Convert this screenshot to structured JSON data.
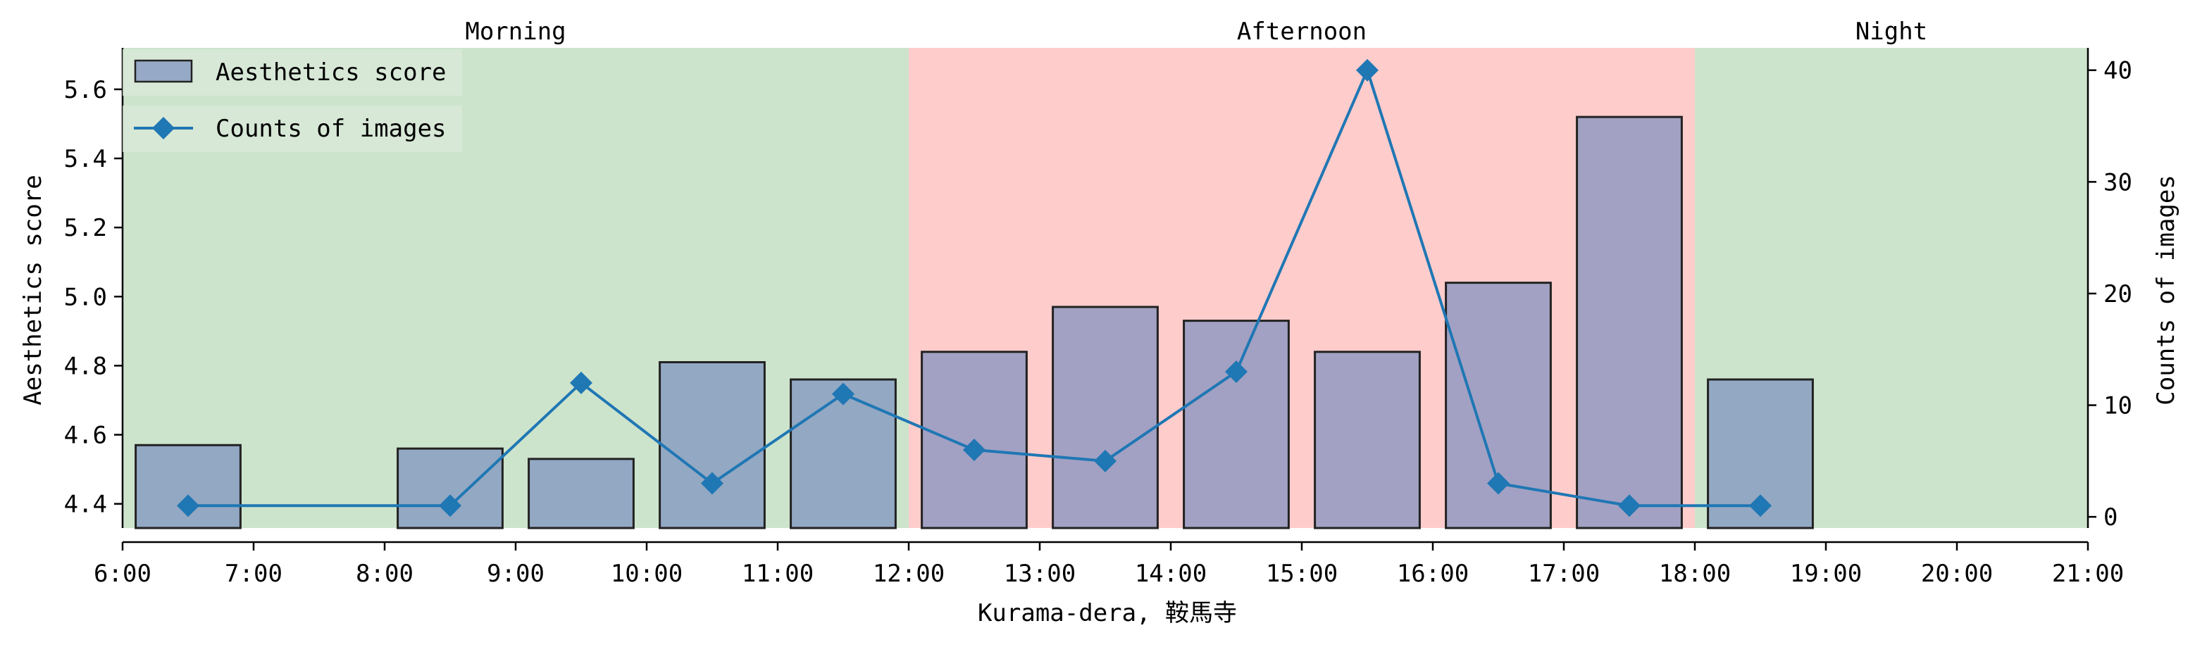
{
  "chart_data": {
    "type": "bar+line",
    "xlabel": "Kurama-dera, 鞍馬寺",
    "x_ticks": [
      "6:00",
      "7:00",
      "8:00",
      "9:00",
      "10:00",
      "11:00",
      "12:00",
      "13:00",
      "14:00",
      "15:00",
      "16:00",
      "17:00",
      "18:00",
      "19:00",
      "20:00",
      "21:00"
    ],
    "xlim": [
      6,
      21
    ],
    "periods": [
      {
        "label": "Morning",
        "start": 6,
        "end": 12,
        "color": "#cde4cc"
      },
      {
        "label": "Afternoon",
        "start": 12,
        "end": 18,
        "color": "#ffcccc"
      },
      {
        "label": "Night",
        "start": 18,
        "end": 21,
        "color": "#cde4cc"
      }
    ],
    "left_axis": {
      "label": "Aesthetics score",
      "ylim": [
        4.33,
        5.72
      ],
      "ticks": [
        4.4,
        4.6,
        4.8,
        5.0,
        5.2,
        5.4,
        5.6
      ],
      "tick_labels": [
        "4.4",
        "4.6",
        "4.8",
        "5.0",
        "5.2",
        "5.4",
        "5.6"
      ]
    },
    "right_axis": {
      "label": "Counts of images",
      "ylim": [
        -1,
        42
      ],
      "ticks": [
        0,
        10,
        20,
        30,
        40
      ],
      "tick_labels": [
        "0",
        "10",
        "20",
        "30",
        "40"
      ]
    },
    "bars": {
      "name": "Aesthetics score",
      "color": "#7b8fbf",
      "x": [
        6.5,
        8.5,
        9.5,
        10.5,
        11.5,
        12.5,
        13.5,
        14.5,
        15.5,
        16.5,
        17.5,
        18.5
      ],
      "values": [
        4.57,
        4.56,
        4.53,
        4.81,
        4.76,
        4.84,
        4.97,
        4.93,
        4.84,
        5.04,
        5.52,
        4.76
      ]
    },
    "line": {
      "name": "Counts of images",
      "color": "#1f77b4",
      "marker": "diamond",
      "x": [
        6.5,
        8.5,
        9.5,
        10.5,
        11.5,
        12.5,
        13.5,
        14.5,
        15.5,
        16.5,
        17.5,
        18.5
      ],
      "values": [
        1,
        1,
        12,
        3,
        11,
        6,
        5,
        13,
        40,
        3,
        1,
        1
      ]
    },
    "legend": {
      "placement": "top-left",
      "entries": [
        "Aesthetics score",
        "Counts of images"
      ]
    },
    "grid": false
  }
}
